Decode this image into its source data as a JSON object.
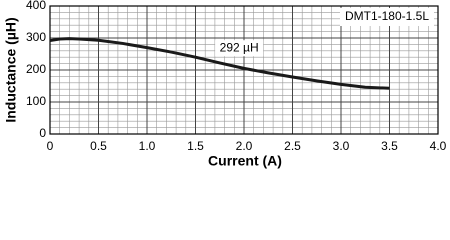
{
  "chart_data": {
    "type": "line",
    "x_label": "Current (A)",
    "y_label": "Inductance (µH)",
    "legend_box": "DMT1-180-1.5L",
    "annotation": {
      "text": "292 µH",
      "x": 1.95,
      "y": 268
    },
    "x": [
      0,
      0.1,
      0.2,
      0.3,
      0.5,
      0.75,
      1.0,
      1.25,
      1.5,
      1.75,
      2.0,
      2.25,
      2.5,
      2.75,
      3.0,
      3.25,
      3.5
    ],
    "series": [
      {
        "color": "#1a1a1a",
        "values": [
          292,
          297,
          298,
          297,
          293,
          283,
          270,
          256,
          240,
          222,
          205,
          191,
          178,
          166,
          155,
          146,
          143
        ]
      }
    ],
    "xlim": [
      0,
      4
    ],
    "ylim": [
      0,
      400
    ],
    "xticks": [
      0,
      0.5,
      {
        "value": 1,
        "label": "1.0"
      },
      1.5,
      {
        "value": 2,
        "label": "2.0"
      },
      2.5,
      {
        "value": 3,
        "label": "3.0"
      },
      3.5,
      {
        "value": 4,
        "label": "4.0"
      }
    ],
    "yticks": [
      0,
      100,
      200,
      300,
      400
    ],
    "grid": true
  }
}
